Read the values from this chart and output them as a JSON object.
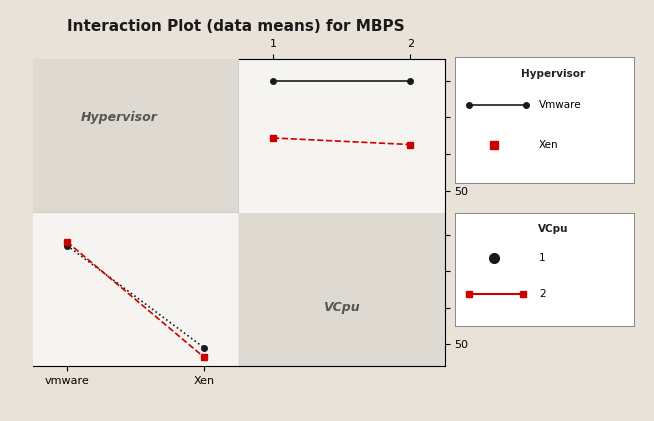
{
  "title": "Interaction Plot (data means) for MBPS",
  "background_color": "#e8e2d8",
  "plot_bg_gray": "#dedad2",
  "plot_bg_white": "#f5f4f0",
  "ylim": [
    47,
    68
  ],
  "yticks": [
    50,
    55,
    60,
    65
  ],
  "hypervisor_labels": [
    "vmware",
    "Xen"
  ],
  "vcpu_labels": [
    "1",
    "2"
  ],
  "vmware_by_hypervisor": [
    63.5,
    49.5
  ],
  "xen_by_hypervisor": [
    64.0,
    48.2
  ],
  "vmware_by_vcpu": [
    65.0,
    65.0
  ],
  "xen_by_vcpu": [
    57.2,
    56.3
  ],
  "hypervisor_label_text": "Hypervisor",
  "vcpu_label_text": "VCpu",
  "legend1_title": "Hypervisor",
  "legend1_vmware": "Vmware",
  "legend1_xen": "Xen",
  "legend2_title": "VCpu",
  "legend2_1": "1",
  "legend2_2": "2",
  "black_color": "#1a1a1a",
  "red_color": "#cc0000",
  "font_size_title": 11,
  "font_size_labels": 8,
  "font_size_legend": 7.5,
  "font_size_ticks": 8,
  "font_size_panel_label": 9
}
